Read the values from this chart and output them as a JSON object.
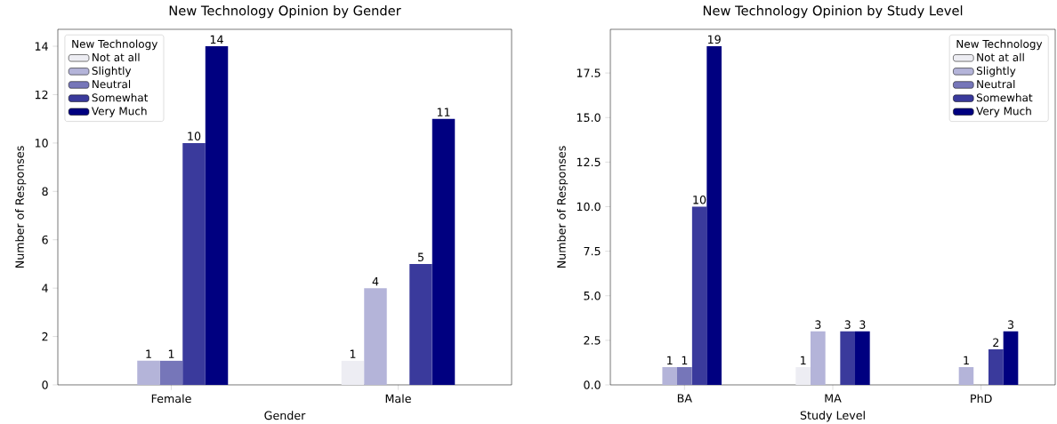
{
  "chart_data": [
    {
      "type": "bar",
      "title": "New Technology Opinion by Gender",
      "xlabel": "Gender",
      "ylabel": "Number of Responses",
      "legend_title": "New Technology",
      "legend": "top left",
      "categories": [
        "Female",
        "Male"
      ],
      "ylim": [
        0,
        14.7
      ],
      "yticks": [
        0,
        2,
        4,
        6,
        8,
        10,
        12,
        14
      ],
      "series": [
        {
          "name": "Not at all",
          "color": "#ededf3",
          "values": [
            0,
            1
          ],
          "value_labels": [
            null,
            "1"
          ]
        },
        {
          "name": "Slightly",
          "color": "#b4b4d9",
          "values": [
            1,
            4
          ],
          "value_labels": [
            "1",
            "4"
          ]
        },
        {
          "name": "Neutral",
          "color": "#7676b9",
          "values": [
            1,
            0
          ],
          "value_labels": [
            "1",
            null
          ]
        },
        {
          "name": "Somewhat",
          "color": "#3a3a9c",
          "values": [
            10,
            5
          ],
          "value_labels": [
            "10",
            "5"
          ]
        },
        {
          "name": "Very Much",
          "color": "#000080",
          "values": [
            14,
            11
          ],
          "value_labels": [
            "14",
            "11"
          ]
        }
      ]
    },
    {
      "type": "bar",
      "title": "New Technology Opinion by Study Level",
      "xlabel": "Study Level",
      "ylabel": "Number of Responses",
      "legend_title": "New Technology",
      "legend": "top right",
      "categories": [
        "BA",
        "MA",
        "PhD"
      ],
      "ylim": [
        0,
        19.95
      ],
      "yticks": [
        {
          "value": 0,
          "label": "0.0"
        },
        {
          "value": 2.5,
          "label": "2.5"
        },
        {
          "value": 5,
          "label": "5.0"
        },
        {
          "value": 7.5,
          "label": "7.5"
        },
        {
          "value": 10,
          "label": "10.0"
        },
        {
          "value": 12.5,
          "label": "12.5"
        },
        {
          "value": 15,
          "label": "15.0"
        },
        {
          "value": 17.5,
          "label": "17.5"
        }
      ],
      "series": [
        {
          "name": "Not at all",
          "color": "#ededf3",
          "values": [
            0,
            1,
            0
          ],
          "value_labels": [
            null,
            "1",
            null
          ]
        },
        {
          "name": "Slightly",
          "color": "#b4b4d9",
          "values": [
            1,
            3,
            1
          ],
          "value_labels": [
            "1",
            "3",
            "1"
          ]
        },
        {
          "name": "Neutral",
          "color": "#7676b9",
          "values": [
            1,
            0,
            0
          ],
          "value_labels": [
            "1",
            null,
            null
          ]
        },
        {
          "name": "Somewhat",
          "color": "#3a3a9c",
          "values": [
            10,
            3,
            2
          ],
          "value_labels": [
            "10",
            "3",
            "2"
          ]
        },
        {
          "name": "Very Much",
          "color": "#000080",
          "values": [
            19,
            3,
            3
          ],
          "value_labels": [
            "19",
            "3",
            "3"
          ]
        }
      ]
    }
  ]
}
